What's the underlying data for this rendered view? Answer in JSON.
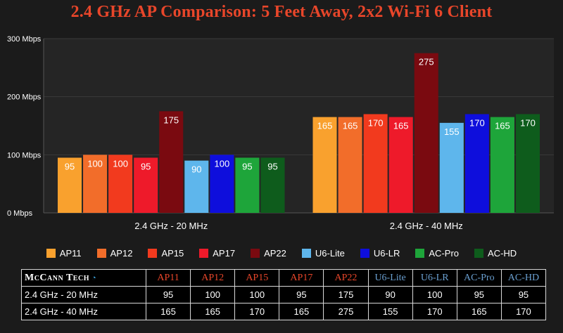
{
  "header": {
    "title": "2.4 GHz AP Comparison: 5 Feet Away, 2x2 Wi-Fi 6 Client"
  },
  "chart_data": {
    "type": "bar",
    "title": "2.4 GHz AP Comparison: 5 Feet Away, 2x2 Wi-Fi 6 Client",
    "categories": [
      "2.4 GHz - 20 MHz",
      "2.4 GHz - 40 MHz"
    ],
    "ylim": [
      0,
      300
    ],
    "yticks": [
      "0 Mbps",
      "100 Mbps",
      "200 Mbps",
      "300 Mbps"
    ],
    "ytick_values": [
      0,
      100,
      200,
      300
    ],
    "grid": true,
    "legend_position": "bottom",
    "series": [
      {
        "name": "AP11",
        "color": "#f9a12e",
        "values": [
          95,
          165
        ]
      },
      {
        "name": "AP12",
        "color": "#f26d2a",
        "values": [
          100,
          165
        ]
      },
      {
        "name": "AP15",
        "color": "#f23a1e",
        "values": [
          100,
          170
        ]
      },
      {
        "name": "AP17",
        "color": "#ee1a2a",
        "values": [
          95,
          165
        ]
      },
      {
        "name": "AP22",
        "color": "#7a0a10",
        "values": [
          175,
          275
        ]
      },
      {
        "name": "U6-Lite",
        "color": "#5eb6ec",
        "values": [
          90,
          155
        ]
      },
      {
        "name": "U6-LR",
        "color": "#0e0edc",
        "values": [
          100,
          170
        ]
      },
      {
        "name": "AC-Pro",
        "color": "#1ea53a",
        "values": [
          95,
          165
        ]
      },
      {
        "name": "AC-HD",
        "color": "#0e5c1c",
        "values": [
          95,
          170
        ]
      }
    ]
  },
  "table": {
    "brand": "McCann Tech",
    "header_colors": [
      "#e8462a",
      "#e8462a",
      "#e8462a",
      "#e8462a",
      "#e8462a",
      "#6a9fd0",
      "#6a9fd0",
      "#6a9fd0",
      "#6a9fd0"
    ],
    "columns": [
      "AP11",
      "AP12",
      "AP15",
      "AP17",
      "AP22",
      "U6-Lite",
      "U6-LR",
      "AC-Pro",
      "AC-HD"
    ],
    "rows": [
      {
        "label": "2.4 GHz - 20 MHz",
        "values": [
          "95",
          "100",
          "100",
          "95",
          "175",
          "90",
          "100",
          "95",
          "95"
        ]
      },
      {
        "label": "2.4 GHz - 40 MHz",
        "values": [
          "165",
          "165",
          "170",
          "165",
          "275",
          "155",
          "170",
          "165",
          "170"
        ]
      }
    ]
  }
}
